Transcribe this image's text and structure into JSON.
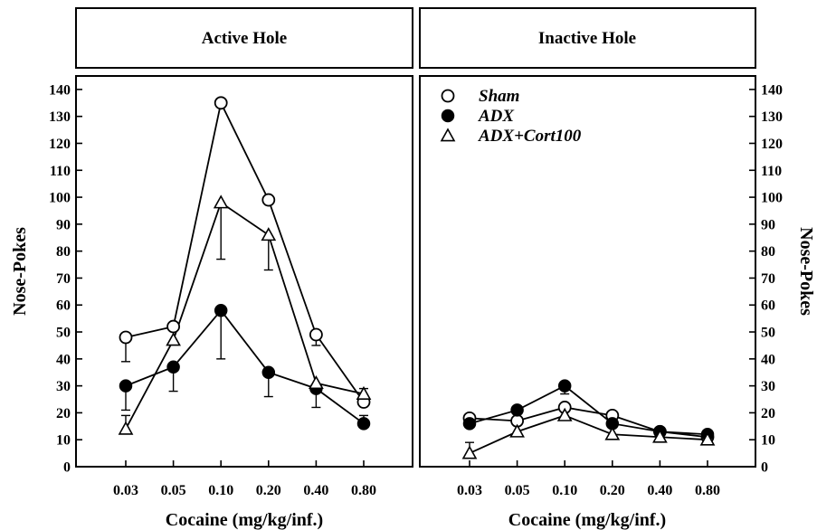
{
  "chart_data": [
    {
      "type": "line",
      "title": "Active Hole",
      "xlabel": "Cocaine (mg/kg/inf.)",
      "ylabel": "Nose-Pokes",
      "categories": [
        "0.03",
        "0.05",
        "0.10",
        "0.20",
        "0.40",
        "0.80"
      ],
      "ylim": [
        0,
        145
      ],
      "yticks": [
        0,
        10,
        20,
        30,
        40,
        50,
        60,
        70,
        80,
        90,
        100,
        110,
        120,
        130,
        140
      ],
      "ytick_side": "left",
      "grid": false,
      "series": [
        {
          "name": "Sham",
          "marker": "open-circle",
          "values": [
            48,
            52,
            135,
            99,
            49,
            24
          ],
          "errors": [
            9,
            6,
            0,
            0,
            4,
            5
          ]
        },
        {
          "name": "ADX",
          "marker": "filled-circle",
          "values": [
            30,
            37,
            58,
            35,
            29,
            16
          ],
          "errors": [
            9,
            9,
            18,
            9,
            7,
            3
          ]
        },
        {
          "name": "ADX+Cort100",
          "marker": "open-triangle",
          "values": [
            14,
            47,
            98,
            86,
            31,
            27
          ],
          "errors": [
            5,
            0,
            21,
            13,
            0,
            0
          ]
        }
      ]
    },
    {
      "type": "line",
      "title": "Inactive Hole",
      "xlabel": "Cocaine (mg/kg/inf.)",
      "ylabel": "Nose-Pokes",
      "categories": [
        "0.03",
        "0.05",
        "0.10",
        "0.20",
        "0.40",
        "0.80"
      ],
      "ylim": [
        0,
        145
      ],
      "yticks": [
        0,
        10,
        20,
        30,
        40,
        50,
        60,
        70,
        80,
        90,
        100,
        110,
        120,
        130,
        140
      ],
      "ytick_side": "right",
      "legend": "top-left",
      "grid": false,
      "series": [
        {
          "name": "Sham",
          "marker": "open-circle",
          "values": [
            18,
            17,
            22,
            19,
            13,
            11
          ],
          "errors": [
            0,
            0,
            0,
            0,
            0,
            0
          ]
        },
        {
          "name": "ADX",
          "marker": "filled-circle",
          "values": [
            16,
            21,
            30,
            16,
            13,
            12
          ],
          "errors": [
            0,
            0,
            3,
            0,
            0,
            0
          ]
        },
        {
          "name": "ADX+Cort100",
          "marker": "open-triangle",
          "values": [
            5,
            13,
            19,
            12,
            11,
            10
          ],
          "errors": [
            4,
            0,
            3,
            3,
            2,
            0
          ]
        }
      ]
    }
  ]
}
